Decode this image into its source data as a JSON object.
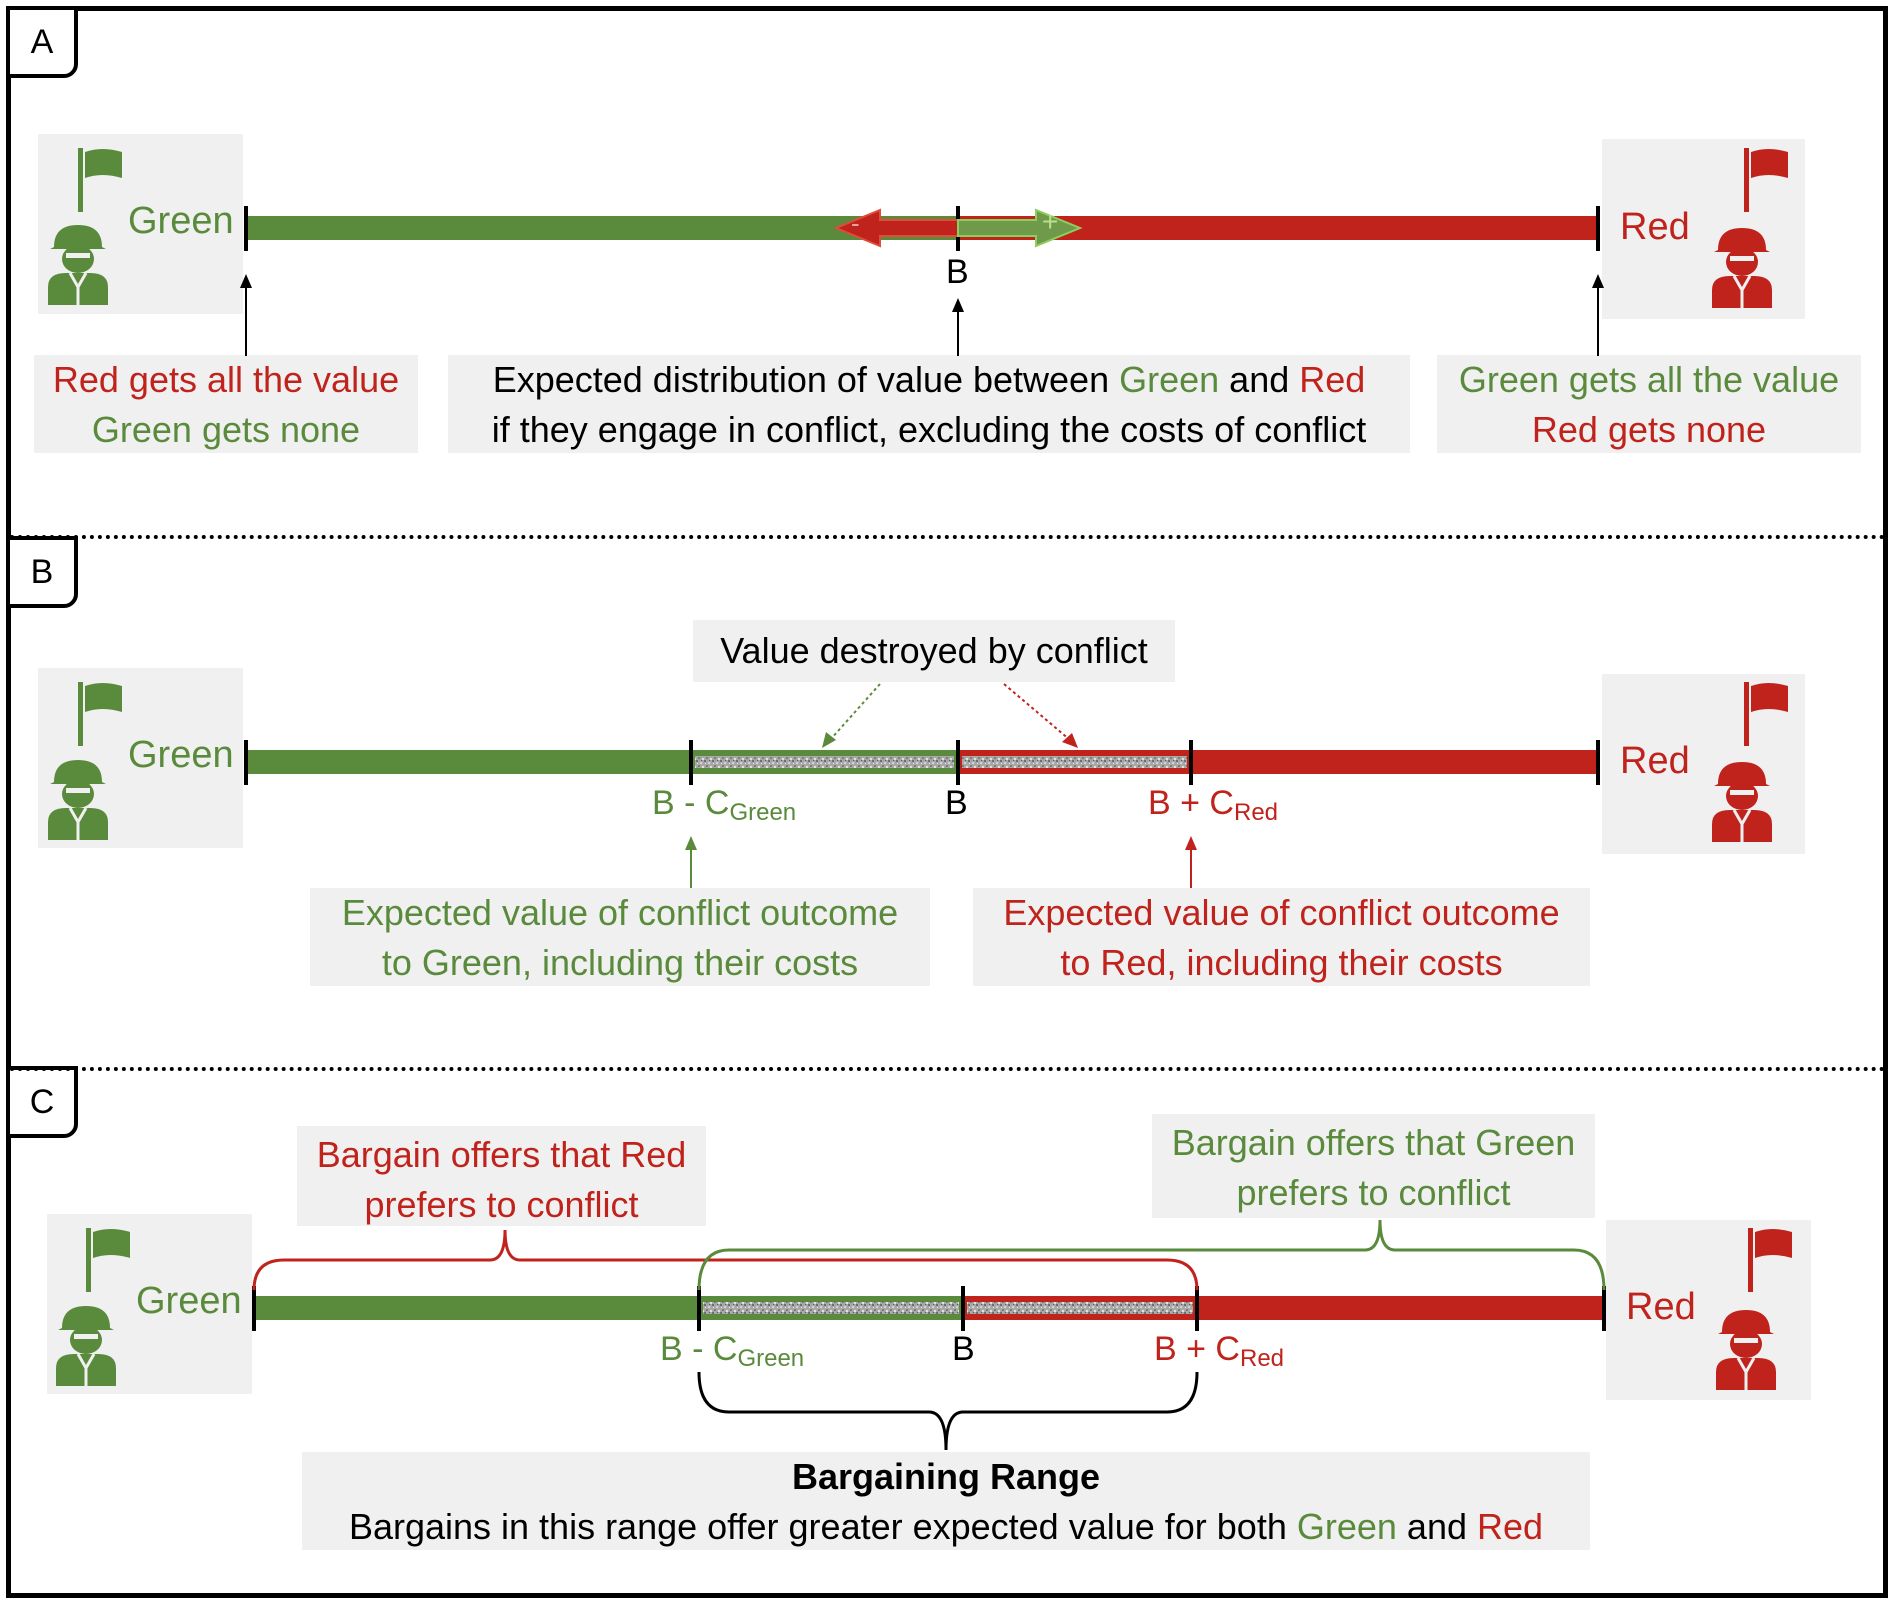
{
  "colors": {
    "green": "#5a8a3c",
    "red": "#c0231c",
    "box": "#f0f0f0",
    "hatch": "#9a9a9a"
  },
  "icons": {
    "green_player": [
      "flag-icon",
      "soldier-icon"
    ],
    "red_player": [
      "flag-icon",
      "soldier-icon"
    ]
  },
  "panels": {
    "a": {
      "tag": "A",
      "green_name": "Green",
      "red_name": "Red",
      "b_label": "B",
      "left_note": {
        "line1": "Red gets all the value",
        "line2": "Green gets none"
      },
      "center_note": {
        "l1_a": "Expected distribution of value between ",
        "l1_green": "Green",
        "l1_and": " and ",
        "l1_red": "Red",
        "l2": "if they engage in conflict, excluding the costs of conflict"
      },
      "right_note": {
        "line1": "Green gets all the value",
        "line2": "Red gets none"
      },
      "arrow_minus": "-",
      "arrow_plus": "+"
    },
    "b": {
      "tag": "B",
      "green_name": "Green",
      "red_name": "Red",
      "destroyed": "Value destroyed by conflict",
      "lbl_left_b": "B - C",
      "lbl_left_sub": "Green",
      "lbl_mid": "B",
      "lbl_right_b": "B + C",
      "lbl_right_sub": "Red",
      "green_note": {
        "line1": "Expected value of conflict outcome",
        "line2": "to Green, including their costs"
      },
      "red_note": {
        "line1": "Expected value of conflict outcome",
        "line2": "to Red, including their costs"
      }
    },
    "c": {
      "tag": "C",
      "green_name": "Green",
      "red_name": "Red",
      "red_offers": {
        "line1": "Bargain offers that Red",
        "line2": "prefers to conflict"
      },
      "green_offers": {
        "line1": "Bargain offers that Green",
        "line2": "prefers to conflict"
      },
      "lbl_left_b": "B - C",
      "lbl_left_sub": "Green",
      "lbl_mid": "B",
      "lbl_right_b": "B + C",
      "lbl_right_sub": "Red",
      "range_title": "Bargaining Range",
      "range_a": "Bargains in this range offer greater expected value for both ",
      "range_green": "Green",
      "range_and": " and ",
      "range_red": "Red"
    }
  }
}
